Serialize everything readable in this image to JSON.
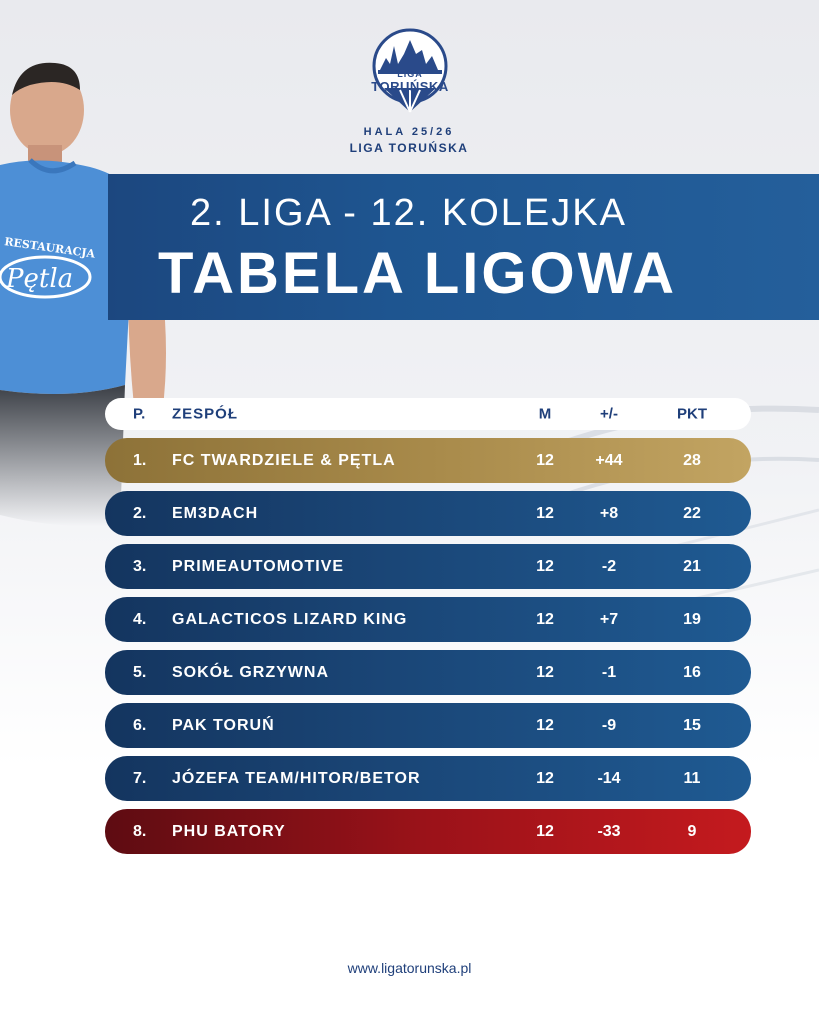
{
  "logo": {
    "line1": "LIGA",
    "line2": "TORUŃSKA"
  },
  "season": {
    "line1": "HALA 25/26",
    "line2": "LIGA TORUŃSKA"
  },
  "header": {
    "subtitle": "2. LIGA - 12. KOLEJKA",
    "title": "TABELA LIGOWA"
  },
  "player_shirt_text": {
    "line1": "RESTAURACJA",
    "line2": "Pętla"
  },
  "table": {
    "columns": {
      "pos": "P.",
      "team": "ZESPÓŁ",
      "matches": "M",
      "diff": "+/-",
      "points": "PKT"
    },
    "rows": [
      {
        "pos": "1.",
        "team": "FC TWARDZIELE & PĘTLA",
        "matches": "12",
        "diff": "+44",
        "points": "28",
        "style": "gold"
      },
      {
        "pos": "2.",
        "team": "EM3DACH",
        "matches": "12",
        "diff": "+8",
        "points": "22",
        "style": "blue"
      },
      {
        "pos": "3.",
        "team": "PRIMEAUTOMOTIVE",
        "matches": "12",
        "diff": "-2",
        "points": "21",
        "style": "blue"
      },
      {
        "pos": "4.",
        "team": "GALACTICOS LIZARD KING",
        "matches": "12",
        "diff": "+7",
        "points": "19",
        "style": "blue"
      },
      {
        "pos": "5.",
        "team": "SOKÓŁ GRZYWNA",
        "matches": "12",
        "diff": "-1",
        "points": "16",
        "style": "blue"
      },
      {
        "pos": "6.",
        "team": "PAK TORUŃ",
        "matches": "12",
        "diff": "-9",
        "points": "15",
        "style": "blue"
      },
      {
        "pos": "7.",
        "team": "JÓZEFA TEAM/HITOR/BETOR",
        "matches": "12",
        "diff": "-14",
        "points": "11",
        "style": "blue"
      },
      {
        "pos": "8.",
        "team": "PHU BATORY",
        "matches": "12",
        "diff": "-33",
        "points": "9",
        "style": "red"
      }
    ]
  },
  "footer": {
    "website": "www.ligatorunska.pl"
  },
  "colors": {
    "navy": "#1f3f7a",
    "band": "#1e5590",
    "gold": "#a88a4a",
    "red": "#9b1219"
  }
}
